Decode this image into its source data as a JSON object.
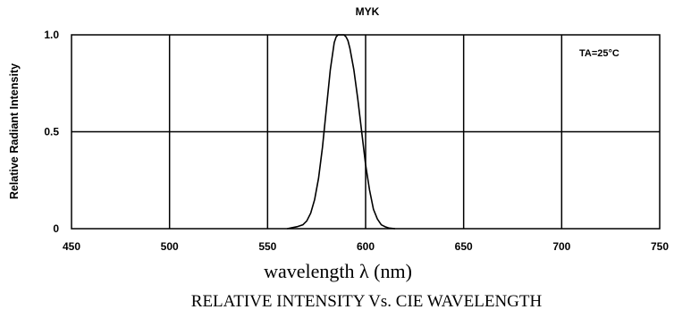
{
  "chart_data": {
    "type": "line",
    "title": "MYK",
    "xlabel": "wavelength λ (nm)",
    "ylabel": "Relative Radiant Intensity",
    "caption": "RELATIVE INTENSITY Vs. CIE WAVELENGTH",
    "annotation": "TA=25°C",
    "xlim": [
      450,
      750
    ],
    "ylim": [
      0,
      1.0
    ],
    "x_ticks": [
      450,
      500,
      550,
      600,
      650,
      700,
      750
    ],
    "y_ticks": [
      {
        "value": 0,
        "label": "0"
      },
      {
        "value": 0.5,
        "label": "0.5"
      },
      {
        "value": 1.0,
        "label": "1.0"
      }
    ],
    "grid": true,
    "series": [
      {
        "x": [
          560,
          565,
          568,
          570,
          572,
          574,
          576,
          578,
          580,
          582,
          584,
          585,
          586,
          587,
          588,
          589,
          590,
          591,
          592,
          594,
          596,
          598,
          600,
          602,
          604,
          606,
          608,
          610,
          612,
          615
        ],
        "values": [
          0,
          0.01,
          0.02,
          0.04,
          0.08,
          0.15,
          0.26,
          0.42,
          0.62,
          0.82,
          0.96,
          0.99,
          1.0,
          1.0,
          1.0,
          1.0,
          0.99,
          0.97,
          0.93,
          0.82,
          0.67,
          0.5,
          0.33,
          0.2,
          0.1,
          0.05,
          0.02,
          0.01,
          0.003,
          0
        ]
      }
    ]
  }
}
